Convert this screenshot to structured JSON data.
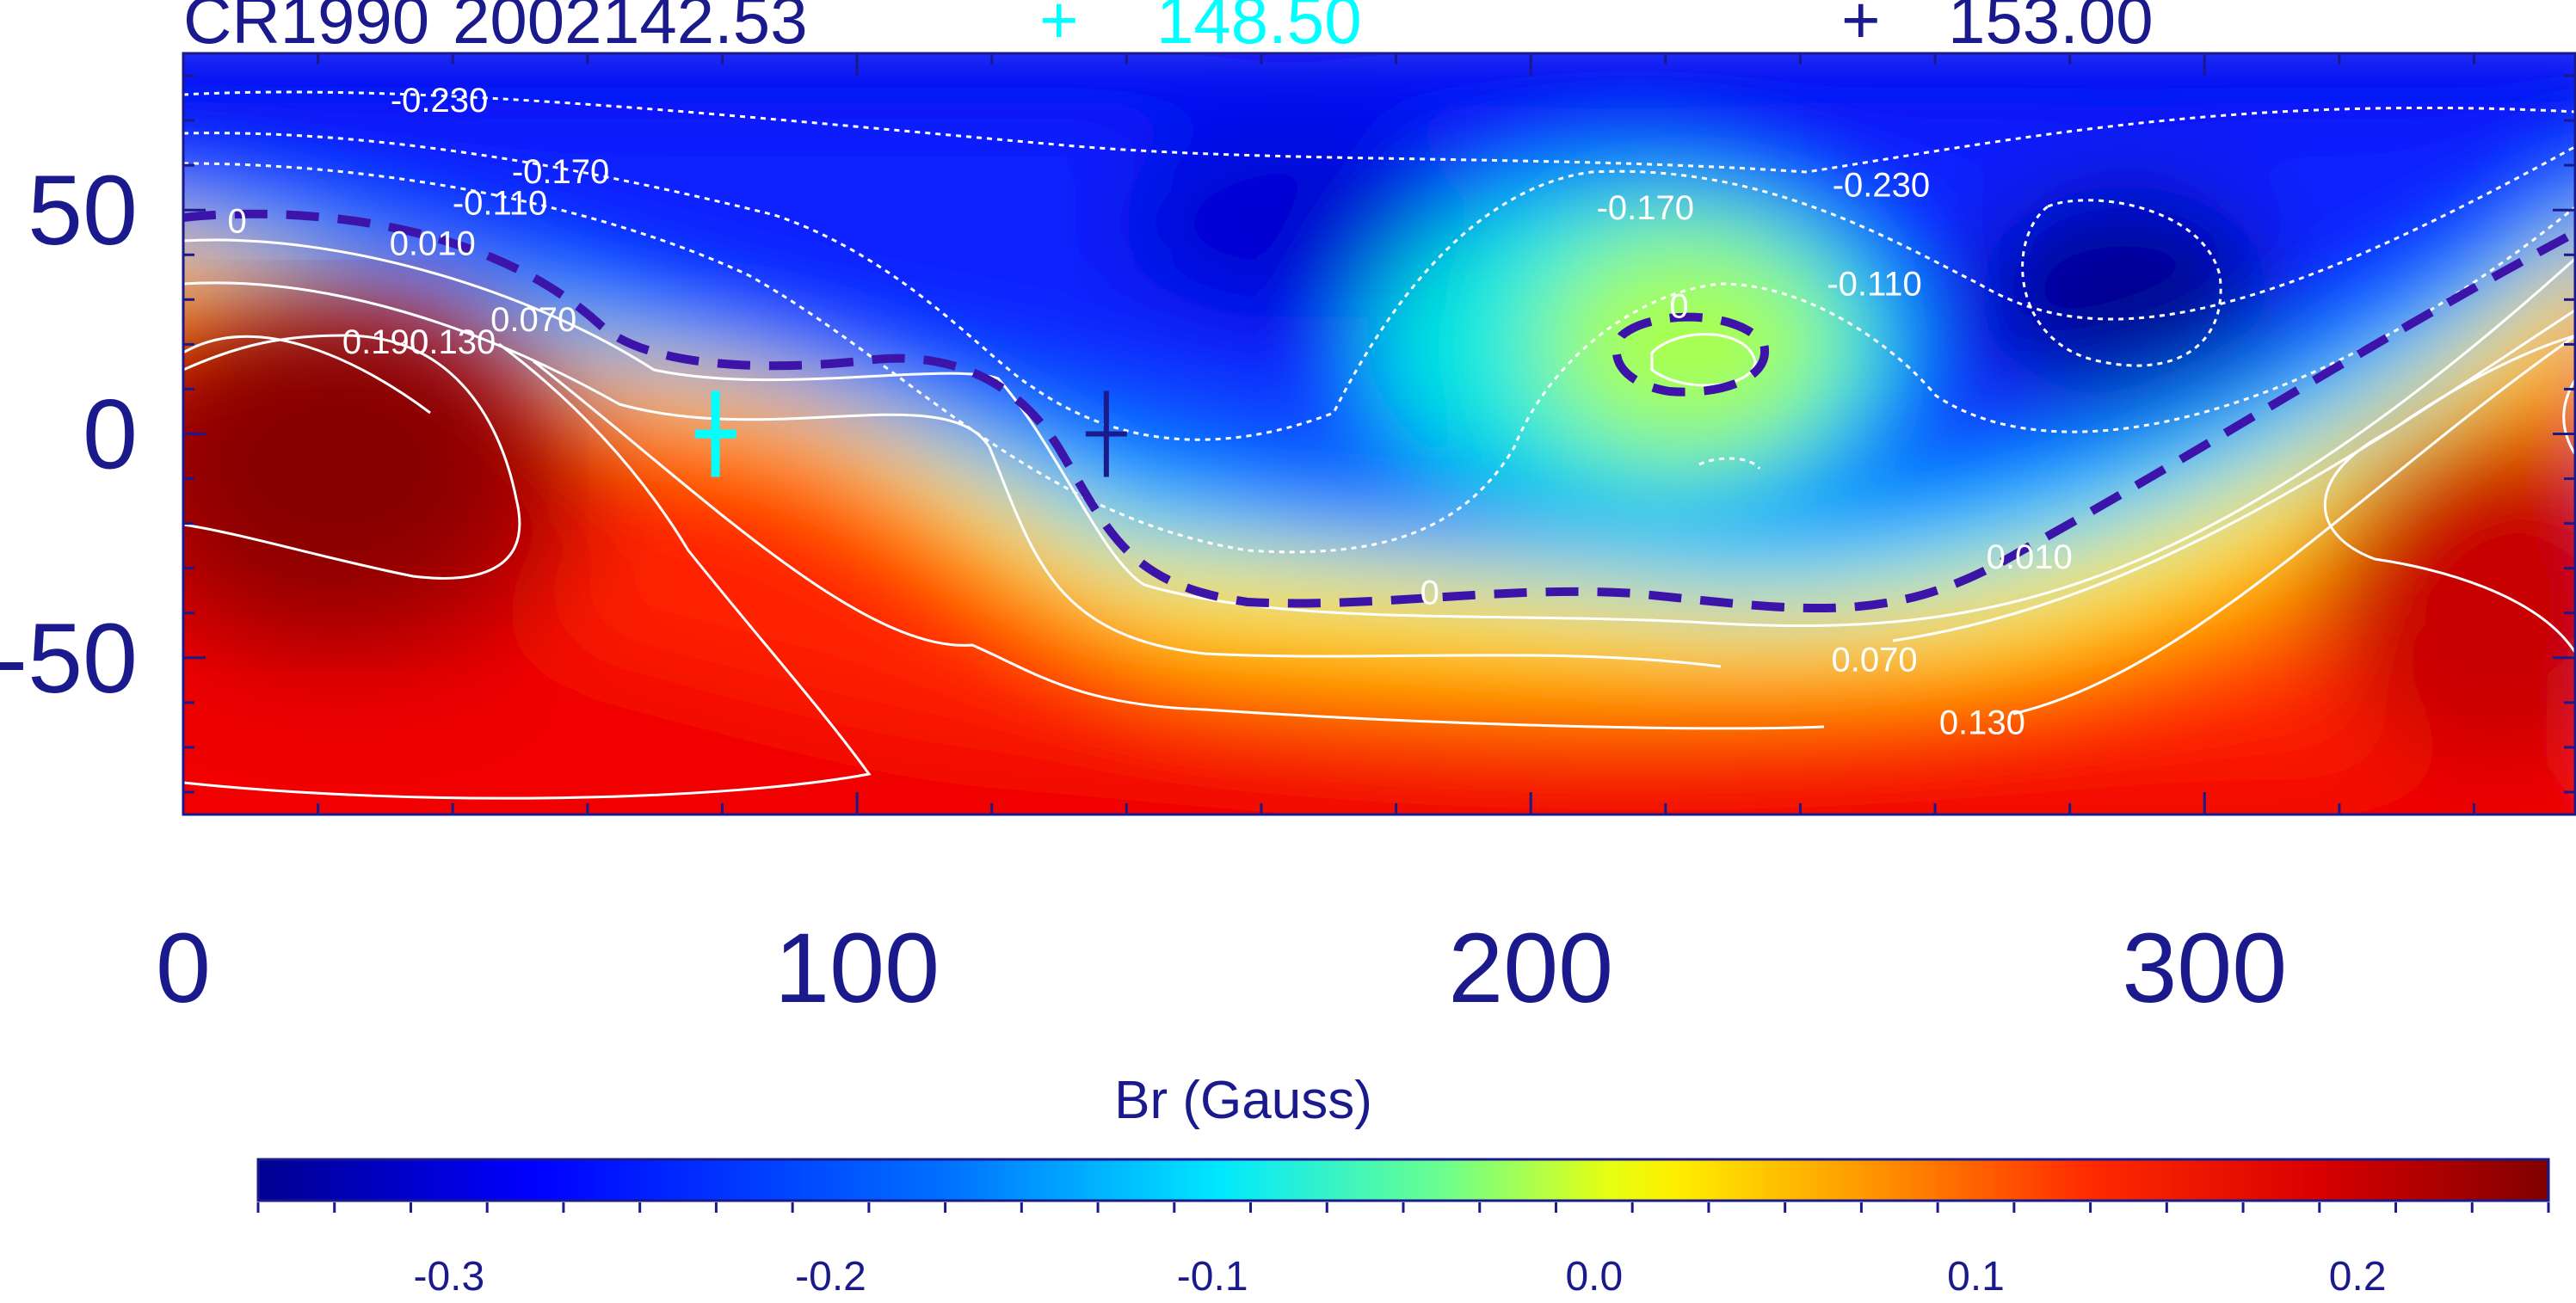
{
  "header": {
    "rotation_label": "CR1990",
    "year": "2002",
    "value1": "142.53",
    "marker1_symbol": "+",
    "value2": "148.50",
    "marker2_symbol": "+",
    "value3": "153.00"
  },
  "colors": {
    "text": "#1a1a8c",
    "marker_cyan": "#00ffff",
    "marker_navy": "#1a1a8c",
    "neutral_line": "#3c14aa",
    "contour": "#ffffff"
  },
  "chart_data": {
    "type": "heatmap",
    "title": "",
    "xlabel": "",
    "ylabel": "",
    "xlim": [
      0,
      355
    ],
    "ylim": [
      -85,
      85
    ],
    "x_ticks": [
      "0",
      "100",
      "200",
      "300"
    ],
    "y_ticks": [
      "50",
      "0",
      "-50"
    ],
    "markers": [
      {
        "name": "148.50",
        "color": "#00ffff",
        "x": 79,
        "y": 0
      },
      {
        "name": "153.00",
        "color": "#1a1a8c",
        "x": 137,
        "y": 0
      }
    ],
    "contour_labels": [
      {
        "text": "-0.230",
        "x": 38,
        "y": 74
      },
      {
        "text": "-0.170",
        "x": 56,
        "y": 58
      },
      {
        "text": "-0.110",
        "x": 47,
        "y": 51
      },
      {
        "text": "0",
        "x": 8,
        "y": 47
      },
      {
        "text": "0.010",
        "x": 37,
        "y": 42
      },
      {
        "text": "0.070",
        "x": 52,
        "y": 25
      },
      {
        "text": "0.130",
        "x": 40,
        "y": 20
      },
      {
        "text": "0.190",
        "x": 30,
        "y": 20
      },
      {
        "text": "-0.230",
        "x": 252,
        "y": 55
      },
      {
        "text": "-0.170",
        "x": 217,
        "y": 50
      },
      {
        "text": "-0.110",
        "x": 251,
        "y": 33
      },
      {
        "text": "0",
        "x": 222,
        "y": 28
      },
      {
        "text": "0",
        "x": 185,
        "y": -36
      },
      {
        "text": "0.010",
        "x": 274,
        "y": -28
      },
      {
        "text": "0.070",
        "x": 251,
        "y": -51
      },
      {
        "text": "0.130",
        "x": 267,
        "y": -65
      }
    ],
    "colorbar": {
      "label": "Br (Gauss)",
      "range": [
        -0.35,
        0.25
      ],
      "ticks": [
        "-0.3",
        "-0.2",
        "-0.1",
        "0.0",
        "0.1",
        "0.2"
      ]
    }
  }
}
